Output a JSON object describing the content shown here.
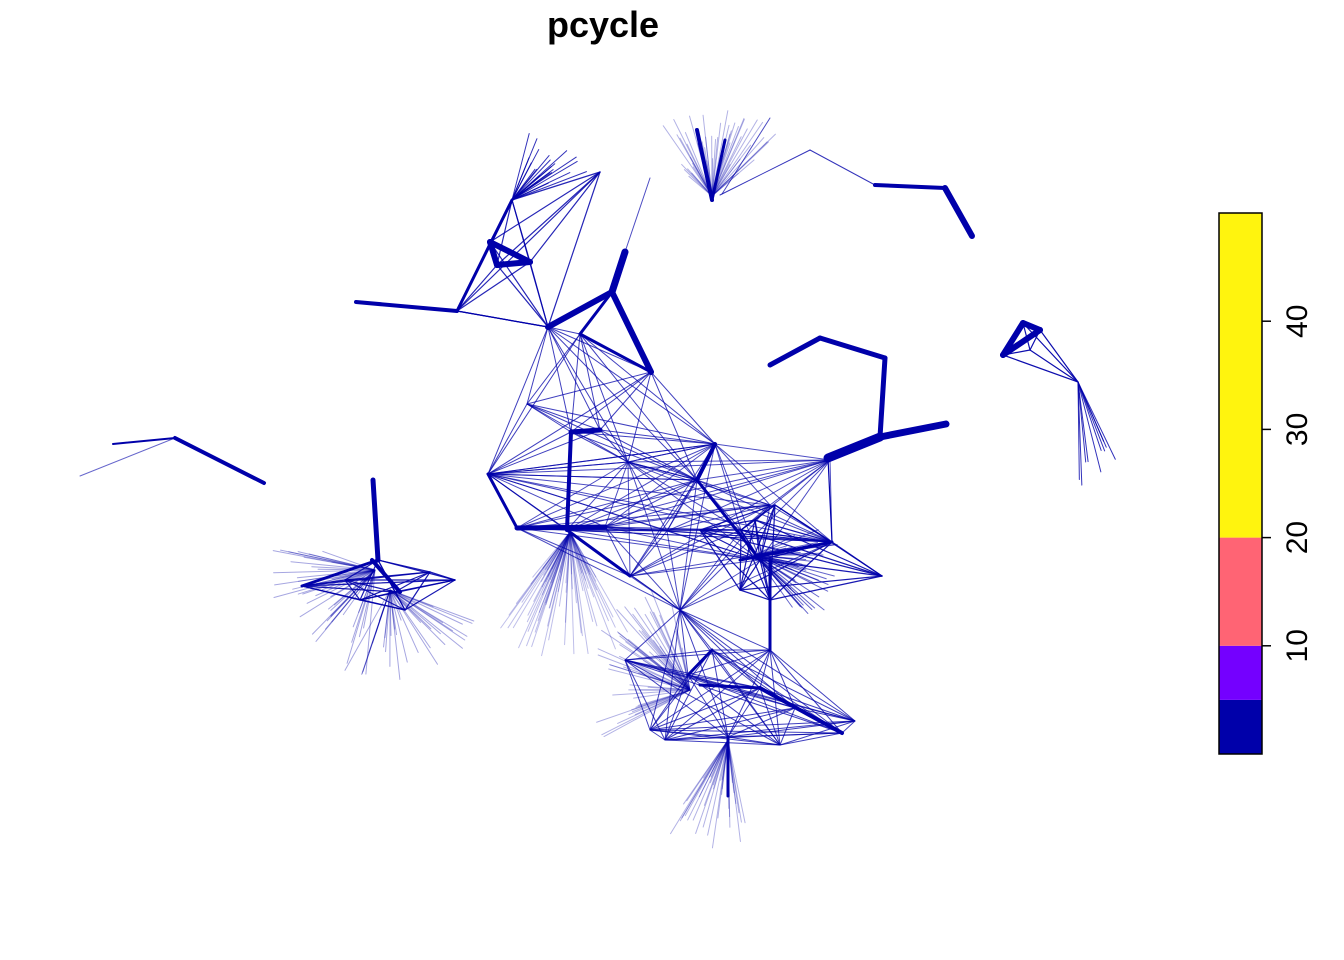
{
  "title": "pcycle",
  "legend": {
    "type": "color-bar",
    "range": [
      0,
      50
    ],
    "bins": [
      {
        "from": 0,
        "to": 5,
        "color": "#0000AA"
      },
      {
        "from": 5,
        "to": 10,
        "color": "#7400FF"
      },
      {
        "from": 10,
        "to": 20,
        "color": "#FF6474"
      },
      {
        "from": 20,
        "to": 50,
        "color": "#FFF40E"
      }
    ],
    "ticks": [
      "10",
      "20",
      "30",
      "40"
    ]
  },
  "line_color": "#0000AA"
}
